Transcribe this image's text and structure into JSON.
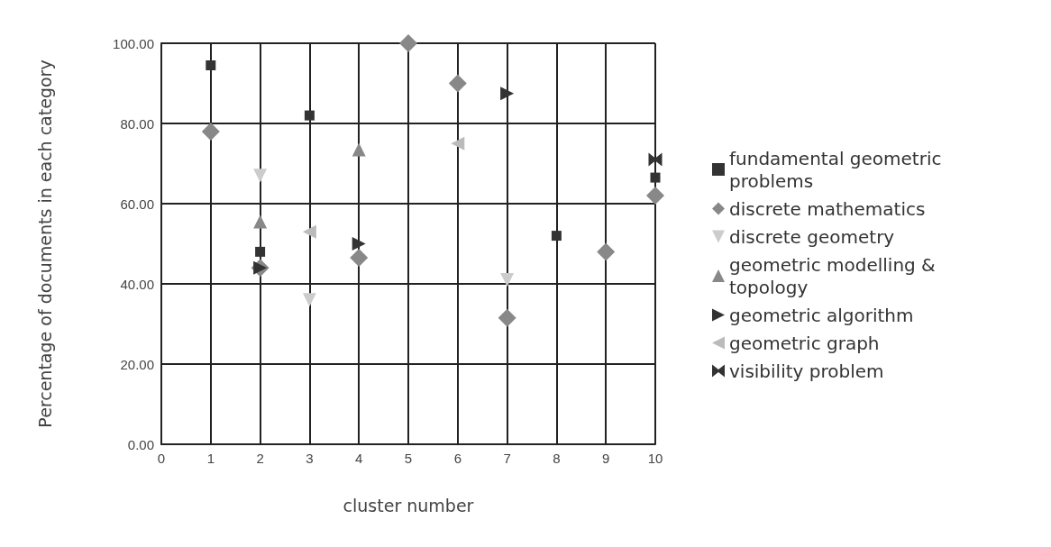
{
  "chart_data": {
    "type": "scatter",
    "xlabel": "cluster number",
    "ylabel": "Percentage of documents in each category",
    "xlim": [
      0,
      10
    ],
    "xticks": [
      0,
      1,
      2,
      3,
      4,
      5,
      6,
      7,
      8,
      9,
      10
    ],
    "ylim": [
      0,
      100
    ],
    "yticks": [
      {
        "value": 0,
        "label": "0.00"
      },
      {
        "value": 20,
        "label": "20.00"
      },
      {
        "value": 40,
        "label": "40.00"
      },
      {
        "value": 60,
        "label": "60.00"
      },
      {
        "value": 80,
        "label": "80.00"
      },
      {
        "value": 100,
        "label": "100.00"
      }
    ],
    "grid": true,
    "legend": "right",
    "series": [
      {
        "name": "fundamental geometric problems",
        "color": "#333333",
        "marker": "square",
        "x": [
          1,
          2,
          3,
          8,
          10
        ],
        "values": [
          94.5,
          48,
          82,
          52,
          66.5
        ]
      },
      {
        "name": "discrete mathematics",
        "color": "#888888",
        "marker": "diamond",
        "x": [
          1,
          2,
          4,
          5,
          6,
          7,
          9,
          10
        ],
        "values": [
          78,
          44,
          46.5,
          100,
          90,
          31.5,
          48,
          62
        ]
      },
      {
        "name": "discrete geometry",
        "color": "#cccccc",
        "marker": "triangle-down",
        "x": [
          2,
          3,
          7
        ],
        "values": [
          67,
          36,
          41
        ]
      },
      {
        "name": "geometric modelling & topology",
        "color": "#888888",
        "marker": "triangle",
        "x": [
          2,
          4
        ],
        "values": [
          55.5,
          73.5
        ]
      },
      {
        "name": "geometric algorithm",
        "color": "#333333",
        "marker": "triangle-right",
        "x": [
          2,
          4,
          7
        ],
        "values": [
          44,
          50,
          87.5
        ]
      },
      {
        "name": "geometric graph",
        "color": "#bbbbbb",
        "marker": "triangle-left",
        "x": [
          3,
          6
        ],
        "values": [
          53,
          75
        ]
      },
      {
        "name": "visibility problem",
        "color": "#333333",
        "x": [
          10
        ],
        "values": [
          71
        ]
      }
    ]
  }
}
